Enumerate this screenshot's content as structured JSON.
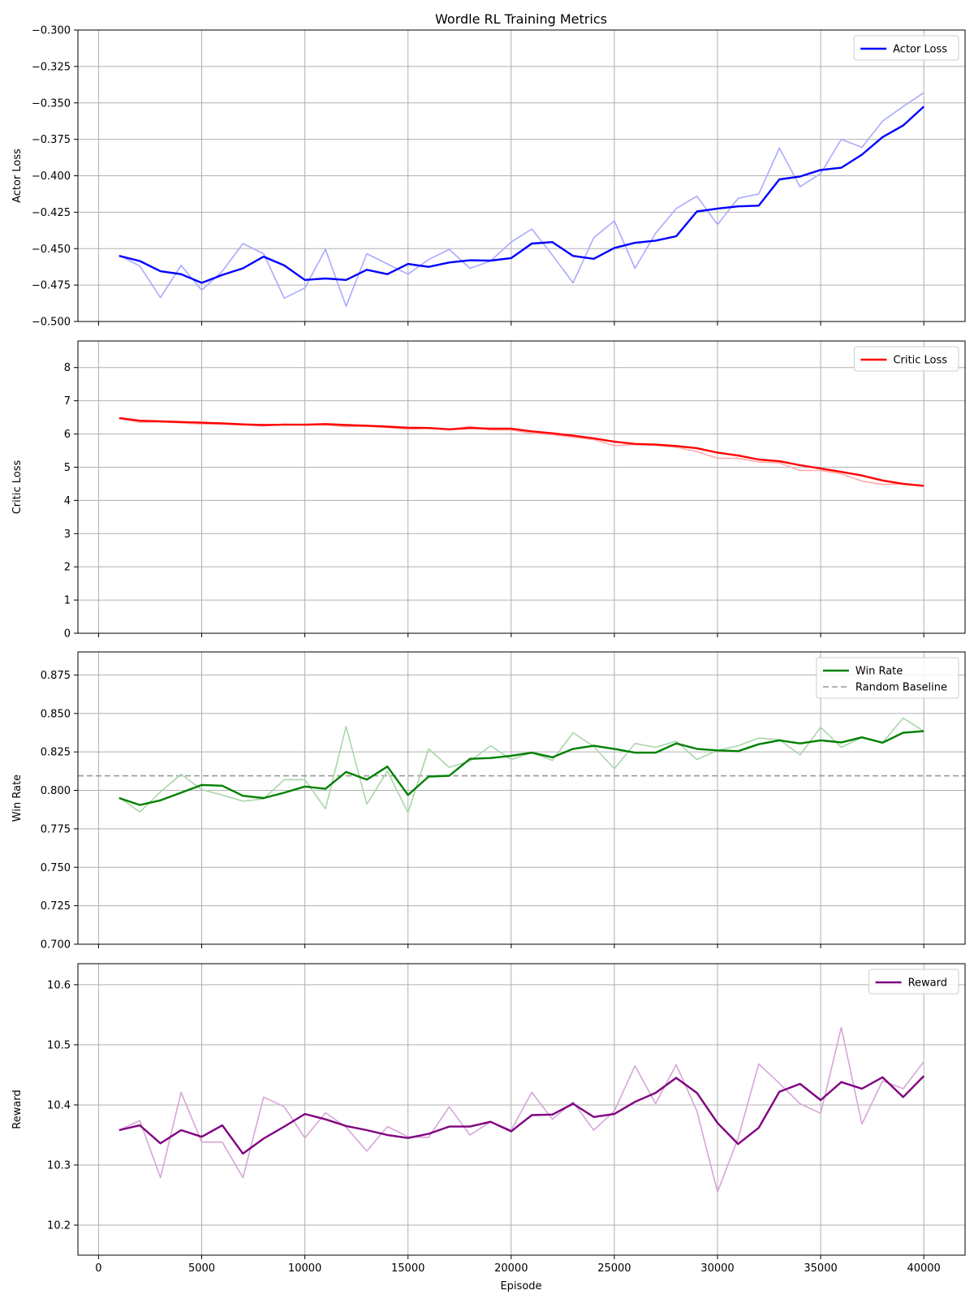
{
  "title": "Wordle RL Training Metrics",
  "xlabel": "Episode",
  "x_ticks": [
    0,
    5000,
    10000,
    15000,
    20000,
    25000,
    30000,
    35000,
    40000
  ],
  "chart_data": [
    {
      "type": "line",
      "ylabel": "Actor Loss",
      "ylim": [
        -0.5,
        -0.3
      ],
      "xlim": [
        -1000,
        42000
      ],
      "y_ticks": [
        -0.5,
        -0.475,
        -0.45,
        -0.425,
        -0.4,
        -0.375,
        -0.35,
        -0.325,
        -0.3
      ],
      "y_tick_labels": [
        "−0.500",
        "−0.475",
        "−0.450",
        "−0.425",
        "−0.400",
        "−0.375",
        "−0.350",
        "−0.325",
        "−0.300"
      ],
      "grid": true,
      "legend": "top-right",
      "x": [
        1000,
        2000,
        3000,
        4000,
        5000,
        6000,
        7000,
        8000,
        9000,
        10000,
        11000,
        12000,
        13000,
        14000,
        15000,
        16000,
        17000,
        18000,
        19000,
        20000,
        21000,
        22000,
        23000,
        24000,
        25000,
        26000,
        27000,
        28000,
        29000,
        30000,
        31000,
        32000,
        33000,
        34000,
        35000,
        36000,
        37000,
        38000,
        39000,
        40000
      ],
      "series": [
        {
          "role": "raw",
          "color": "#aaaaff",
          "values": [
            -0.4545,
            -0.462,
            -0.4835,
            -0.4615,
            -0.4785,
            -0.4655,
            -0.4465,
            -0.4535,
            -0.484,
            -0.477,
            -0.4505,
            -0.4895,
            -0.4535,
            -0.4605,
            -0.4675,
            -0.4575,
            -0.4505,
            -0.4635,
            -0.4585,
            -0.4455,
            -0.4365,
            -0.4545,
            -0.4735,
            -0.4425,
            -0.431,
            -0.4635,
            -0.4395,
            -0.4225,
            -0.414,
            -0.4335,
            -0.4155,
            -0.4125,
            -0.381,
            -0.4075,
            -0.3985,
            -0.375,
            -0.3805,
            -0.3625,
            -0.3525,
            -0.343
          ]
        },
        {
          "name": "Actor Loss",
          "role": "smoothed",
          "color": "#0000ff",
          "values": [
            -0.455,
            -0.4585,
            -0.4655,
            -0.4675,
            -0.4735,
            -0.468,
            -0.4635,
            -0.4555,
            -0.4615,
            -0.4715,
            -0.4705,
            -0.4715,
            -0.4645,
            -0.4675,
            -0.4605,
            -0.4625,
            -0.4595,
            -0.458,
            -0.4582,
            -0.4565,
            -0.4465,
            -0.4455,
            -0.455,
            -0.457,
            -0.4495,
            -0.446,
            -0.4445,
            -0.4415,
            -0.4245,
            -0.4225,
            -0.421,
            -0.4205,
            -0.4025,
            -0.4005,
            -0.396,
            -0.3945,
            -0.3855,
            -0.3735,
            -0.3655,
            -0.3525
          ]
        }
      ]
    },
    {
      "type": "line",
      "ylabel": "Critic Loss",
      "ylim": [
        0,
        8.8
      ],
      "xlim": [
        -1000,
        42000
      ],
      "y_ticks": [
        0,
        1,
        2,
        3,
        4,
        5,
        6,
        7,
        8
      ],
      "y_tick_labels": [
        "0",
        "1",
        "2",
        "3",
        "4",
        "5",
        "6",
        "7",
        "8"
      ],
      "grid": true,
      "legend": "top-right",
      "x": [
        1000,
        2000,
        3000,
        4000,
        5000,
        6000,
        7000,
        8000,
        9000,
        10000,
        11000,
        12000,
        13000,
        14000,
        15000,
        16000,
        17000,
        18000,
        19000,
        20000,
        21000,
        22000,
        23000,
        24000,
        25000,
        26000,
        27000,
        28000,
        29000,
        30000,
        31000,
        32000,
        33000,
        34000,
        35000,
        36000,
        37000,
        38000,
        39000,
        40000
      ],
      "series": [
        {
          "role": "raw",
          "color": "#ffaaaa",
          "values": [
            6.47,
            6.35,
            6.37,
            6.33,
            6.3,
            6.3,
            6.27,
            6.24,
            6.3,
            6.27,
            6.27,
            6.22,
            6.23,
            6.2,
            6.14,
            6.18,
            6.13,
            6.23,
            6.12,
            6.12,
            6.02,
            5.98,
            5.9,
            5.83,
            5.65,
            5.68,
            5.66,
            5.6,
            5.47,
            5.27,
            5.27,
            5.16,
            5.13,
            4.9,
            4.9,
            4.8,
            4.58,
            4.48,
            4.5,
            4.43
          ]
        },
        {
          "name": "Critic Loss",
          "role": "smoothed",
          "color": "#ff0000",
          "values": [
            6.48,
            6.4,
            6.38,
            6.36,
            6.34,
            6.32,
            6.29,
            6.27,
            6.28,
            6.28,
            6.3,
            6.27,
            6.25,
            6.22,
            6.19,
            6.18,
            6.14,
            6.18,
            6.16,
            6.16,
            6.08,
            6.02,
            5.95,
            5.87,
            5.77,
            5.7,
            5.68,
            5.64,
            5.57,
            5.44,
            5.35,
            5.23,
            5.18,
            5.06,
            4.96,
            4.86,
            4.75,
            4.6,
            4.5,
            4.44
          ]
        }
      ]
    },
    {
      "type": "line",
      "ylabel": "Win Rate",
      "ylim": [
        0.7,
        0.89
      ],
      "xlim": [
        -1000,
        42000
      ],
      "y_ticks": [
        0.7,
        0.725,
        0.75,
        0.775,
        0.8,
        0.825,
        0.85,
        0.875
      ],
      "y_tick_labels": [
        "0.700",
        "0.725",
        "0.750",
        "0.775",
        "0.800",
        "0.825",
        "0.850",
        "0.875"
      ],
      "grid": true,
      "legend": "top-right",
      "baseline": {
        "name": "Random Baseline",
        "value": 0.8095,
        "color": "#999999",
        "style": "dashed"
      },
      "x": [
        1000,
        2000,
        3000,
        4000,
        5000,
        6000,
        7000,
        8000,
        9000,
        10000,
        11000,
        12000,
        13000,
        14000,
        15000,
        16000,
        17000,
        18000,
        19000,
        20000,
        21000,
        22000,
        23000,
        24000,
        25000,
        26000,
        27000,
        28000,
        29000,
        30000,
        31000,
        32000,
        33000,
        34000,
        35000,
        36000,
        37000,
        38000,
        39000,
        40000
      ],
      "series": [
        {
          "role": "raw",
          "color": "#aad6aa",
          "values": [
            0.7955,
            0.786,
            0.799,
            0.8105,
            0.8005,
            0.797,
            0.793,
            0.7945,
            0.807,
            0.807,
            0.788,
            0.8415,
            0.791,
            0.8125,
            0.7855,
            0.827,
            0.815,
            0.819,
            0.829,
            0.82,
            0.8245,
            0.8195,
            0.8375,
            0.8285,
            0.814,
            0.8305,
            0.828,
            0.832,
            0.82,
            0.826,
            0.829,
            0.834,
            0.833,
            0.823,
            0.841,
            0.828,
            0.8345,
            0.831,
            0.847,
            0.8385
          ]
        },
        {
          "name": "Win Rate",
          "role": "smoothed",
          "color": "#008000",
          "values": [
            0.795,
            0.7905,
            0.7935,
            0.7985,
            0.8035,
            0.803,
            0.7965,
            0.795,
            0.7985,
            0.8025,
            0.801,
            0.812,
            0.807,
            0.8155,
            0.797,
            0.809,
            0.8095,
            0.8205,
            0.821,
            0.8225,
            0.8245,
            0.8215,
            0.827,
            0.829,
            0.827,
            0.8245,
            0.8245,
            0.8305,
            0.827,
            0.826,
            0.8255,
            0.83,
            0.8325,
            0.8305,
            0.8325,
            0.8312,
            0.8345,
            0.831,
            0.8375,
            0.8385
          ]
        }
      ]
    },
    {
      "type": "line",
      "ylabel": "Reward",
      "ylim": [
        10.15,
        10.635
      ],
      "xlim": [
        -1000,
        42000
      ],
      "y_ticks": [
        10.2,
        10.3,
        10.4,
        10.5,
        10.6
      ],
      "y_tick_labels": [
        "10.2",
        "10.3",
        "10.4",
        "10.5",
        "10.6"
      ],
      "grid": true,
      "legend": "top-right",
      "x": [
        1000,
        2000,
        3000,
        4000,
        5000,
        6000,
        7000,
        8000,
        9000,
        10000,
        11000,
        12000,
        13000,
        14000,
        15000,
        16000,
        17000,
        18000,
        19000,
        20000,
        21000,
        22000,
        23000,
        24000,
        25000,
        26000,
        27000,
        28000,
        29000,
        30000,
        31000,
        32000,
        33000,
        34000,
        35000,
        36000,
        37000,
        38000,
        39000,
        40000
      ],
      "series": [
        {
          "role": "raw",
          "color": "#d6a6d6",
          "values": [
            10.358,
            10.374,
            10.279,
            10.421,
            10.338,
            10.338,
            10.279,
            10.413,
            10.397,
            10.345,
            10.387,
            10.363,
            10.323,
            10.364,
            10.347,
            10.346,
            10.397,
            10.35,
            10.372,
            10.358,
            10.421,
            10.376,
            10.405,
            10.358,
            10.39,
            10.465,
            10.402,
            10.467,
            10.39,
            10.255,
            10.345,
            10.468,
            10.436,
            10.402,
            10.386,
            10.529,
            10.368,
            10.44,
            10.427,
            10.472
          ]
        },
        {
          "name": "Reward",
          "role": "smoothed",
          "color": "#800080",
          "values": [
            10.358,
            10.366,
            10.336,
            10.358,
            10.347,
            10.366,
            10.319,
            10.344,
            10.364,
            10.385,
            10.376,
            10.365,
            10.358,
            10.35,
            10.345,
            10.352,
            10.364,
            10.364,
            10.372,
            10.356,
            10.383,
            10.384,
            10.402,
            10.38,
            10.385,
            10.405,
            10.42,
            10.445,
            10.42,
            10.37,
            10.335,
            10.362,
            10.422,
            10.435,
            10.408,
            10.438,
            10.427,
            10.446,
            10.413,
            10.448
          ]
        }
      ]
    }
  ]
}
